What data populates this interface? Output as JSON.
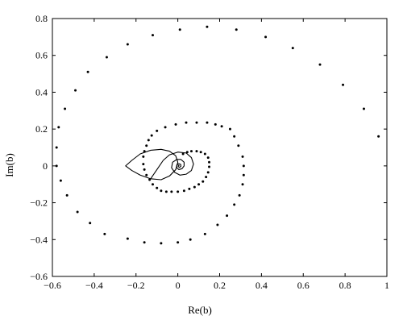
{
  "chart_data": {
    "type": "scatter",
    "title": "",
    "xlabel": "Re(b)",
    "ylabel": "Im(b)",
    "xlim": [
      -0.6,
      1.0
    ],
    "ylim": [
      -0.6,
      0.8
    ],
    "xticks": [
      -0.6,
      -0.4,
      -0.2,
      0,
      0.2,
      0.4,
      0.6,
      0.8,
      1
    ],
    "yticks": [
      -0.6,
      -0.4,
      -0.2,
      0,
      0.2,
      0.4,
      0.6,
      0.8
    ],
    "xtick_labels": [
      "−0.6",
      "−0.4",
      "−0.2",
      "0",
      "0.2",
      "0.4",
      "0.6",
      "0.8",
      "1"
    ],
    "ytick_labels": [
      "−0.6",
      "−0.4",
      "−0.2",
      "0",
      "0.2",
      "0.4",
      "0.6",
      "0.8"
    ],
    "grid": false,
    "legend": "none",
    "box": true,
    "series": [
      {
        "style": "dots",
        "color": "#000000",
        "points": [
          [
            0.96,
            0.16
          ],
          [
            0.89,
            0.31
          ],
          [
            0.79,
            0.44
          ],
          [
            0.68,
            0.55
          ],
          [
            0.55,
            0.64
          ],
          [
            0.42,
            0.7
          ],
          [
            0.28,
            0.74
          ],
          [
            0.14,
            0.755
          ],
          [
            0.01,
            0.74
          ],
          [
            -0.12,
            0.71
          ],
          [
            -0.24,
            0.66
          ],
          [
            -0.34,
            0.59
          ],
          [
            -0.43,
            0.51
          ],
          [
            -0.49,
            0.41
          ],
          [
            -0.54,
            0.31
          ],
          [
            -0.57,
            0.21
          ],
          [
            -0.58,
            0.1
          ],
          [
            -0.58,
            0.0
          ],
          [
            -0.56,
            -0.08
          ],
          [
            -0.53,
            -0.16
          ],
          [
            -0.48,
            -0.25
          ],
          [
            -0.42,
            -0.31
          ],
          [
            -0.35,
            -0.37
          ],
          [
            -0.24,
            -0.395
          ],
          [
            -0.16,
            -0.415
          ],
          [
            -0.08,
            -0.42
          ],
          [
            0.0,
            -0.415
          ],
          [
            0.06,
            -0.4
          ],
          [
            0.13,
            -0.37
          ],
          [
            0.19,
            -0.32
          ],
          [
            0.235,
            -0.27
          ],
          [
            0.27,
            -0.21
          ],
          [
            0.295,
            -0.16
          ],
          [
            0.31,
            -0.1
          ],
          [
            0.315,
            -0.05
          ],
          [
            0.315,
            0.0
          ],
          [
            0.31,
            0.05
          ],
          [
            0.29,
            0.11
          ],
          [
            0.27,
            0.16
          ],
          [
            0.25,
            0.2
          ],
          [
            0.21,
            0.215
          ],
          [
            0.18,
            0.225
          ],
          [
            0.14,
            0.235
          ],
          [
            0.09,
            0.235
          ],
          [
            0.04,
            0.235
          ],
          [
            -0.01,
            0.225
          ],
          [
            -0.06,
            0.21
          ],
          [
            -0.1,
            0.19
          ],
          [
            -0.125,
            0.165
          ],
          [
            -0.14,
            0.14
          ],
          [
            -0.15,
            0.11
          ],
          [
            -0.16,
            0.08
          ],
          [
            -0.165,
            0.05
          ],
          [
            -0.165,
            0.01
          ],
          [
            -0.16,
            -0.02
          ],
          [
            -0.15,
            -0.05
          ],
          [
            -0.135,
            -0.075
          ],
          [
            -0.12,
            -0.1
          ],
          [
            -0.1,
            -0.12
          ],
          [
            -0.08,
            -0.135
          ],
          [
            -0.055,
            -0.14
          ],
          [
            -0.03,
            -0.14
          ],
          [
            0.0,
            -0.14
          ],
          [
            0.03,
            -0.135
          ],
          [
            0.055,
            -0.125
          ],
          [
            0.08,
            -0.115
          ],
          [
            0.1,
            -0.1
          ],
          [
            0.12,
            -0.085
          ],
          [
            0.135,
            -0.06
          ],
          [
            0.145,
            -0.035
          ],
          [
            0.15,
            -0.005
          ],
          [
            0.15,
            0.02
          ],
          [
            0.145,
            0.045
          ],
          [
            0.13,
            0.065
          ],
          [
            0.11,
            0.075
          ],
          [
            0.09,
            0.08
          ],
          [
            0.065,
            0.08
          ],
          [
            0.045,
            0.075
          ],
          [
            0.025,
            0.065
          ]
        ]
      },
      {
        "style": "line",
        "color": "#000000",
        "closed": true,
        "points": [
          [
            -0.25,
            0.0
          ],
          [
            -0.22,
            0.03
          ],
          [
            -0.18,
            0.065
          ],
          [
            -0.13,
            0.085
          ],
          [
            -0.08,
            0.09
          ],
          [
            -0.04,
            0.08
          ],
          [
            -0.01,
            0.055
          ],
          [
            0.0,
            0.02
          ],
          [
            -0.01,
            -0.02
          ],
          [
            -0.04,
            -0.055
          ],
          [
            -0.08,
            -0.075
          ],
          [
            -0.13,
            -0.07
          ],
          [
            -0.18,
            -0.05
          ],
          [
            -0.22,
            -0.025
          ]
        ]
      },
      {
        "style": "line",
        "color": "#000000",
        "closed": false,
        "points": [
          [
            -0.13,
            -0.07
          ],
          [
            -0.1,
            -0.02
          ],
          [
            -0.07,
            0.03
          ],
          [
            -0.04,
            0.06
          ],
          [
            0.0,
            0.075
          ],
          [
            0.04,
            0.07
          ],
          [
            0.065,
            0.045
          ],
          [
            0.075,
            0.01
          ],
          [
            0.065,
            -0.025
          ],
          [
            0.04,
            -0.045
          ],
          [
            0.01,
            -0.05
          ],
          [
            -0.015,
            -0.035
          ],
          [
            -0.03,
            -0.01
          ],
          [
            -0.025,
            0.02
          ],
          [
            -0.005,
            0.035
          ],
          [
            0.015,
            0.035
          ],
          [
            0.03,
            0.02
          ],
          [
            0.03,
            0.0
          ],
          [
            0.02,
            -0.015
          ],
          [
            0.005,
            -0.02
          ],
          [
            -0.005,
            -0.01
          ],
          [
            -0.005,
            0.005
          ],
          [
            0.005,
            0.012
          ],
          [
            0.014,
            0.008
          ],
          [
            0.015,
            -0.002
          ],
          [
            0.008,
            -0.008
          ],
          [
            0.002,
            -0.004
          ],
          [
            0.003,
            0.003
          ],
          [
            0.008,
            0.003
          ]
        ]
      }
    ]
  }
}
